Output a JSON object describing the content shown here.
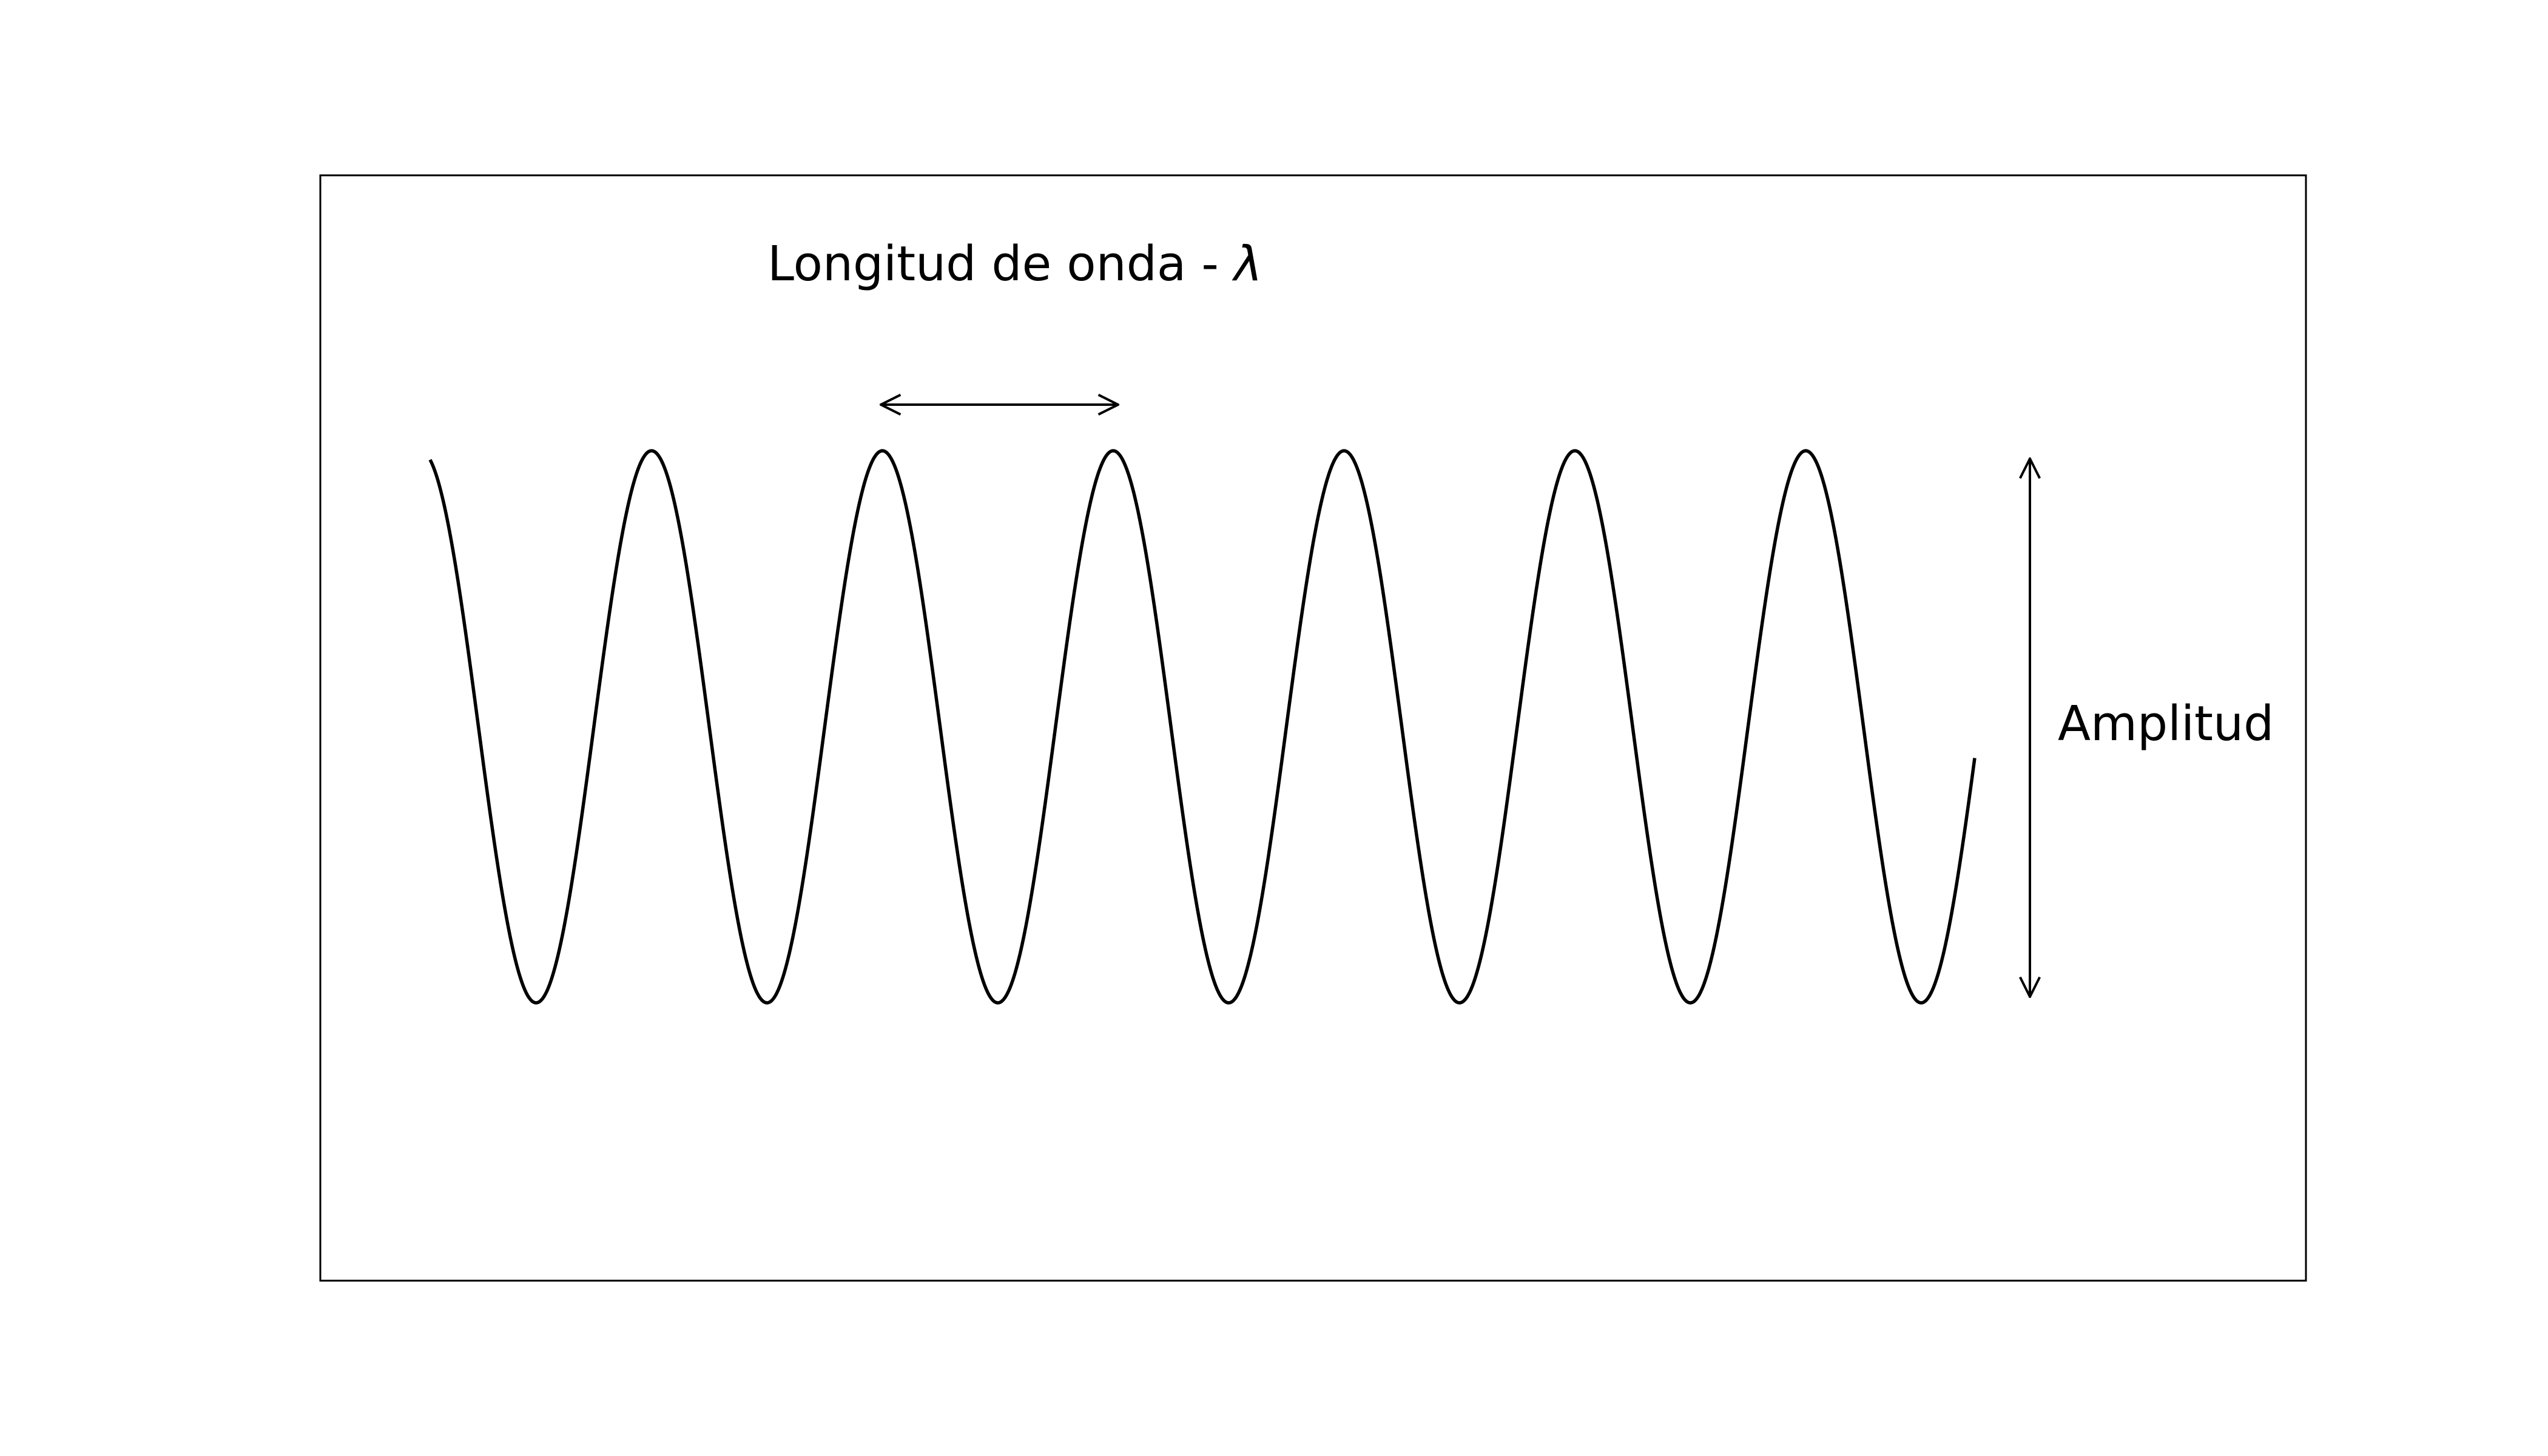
{
  "diagram": {
    "wavelength_label": "Longitud de onda - ",
    "wavelength_symbol": "λ",
    "amplitude_label": "Amplitud",
    "wave": {
      "cycles_shown": 7.15,
      "peaks": 6,
      "troughs": 7
    },
    "colors": {
      "line": "#000000",
      "background": "#ffffff",
      "frame": "#000000"
    }
  }
}
